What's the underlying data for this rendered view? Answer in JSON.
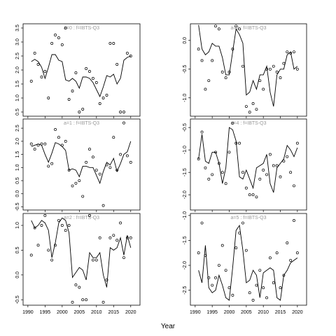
{
  "xlabel": "Year",
  "chart_data": [
    {
      "type": "line",
      "title": "a=0 : f=IBTS-Q3",
      "x": [
        1991,
        1992,
        1993,
        1994,
        1995,
        1996,
        1997,
        1998,
        1999,
        2000,
        2001,
        2002,
        2003,
        2004,
        2005,
        2006,
        2007,
        2008,
        2009,
        2010,
        2011,
        2012,
        2013,
        2014,
        2015,
        2016,
        2017,
        2018,
        2019,
        2020
      ],
      "series": [
        {
          "color": "#000000",
          "values": [
            2.3,
            2.38,
            2.3,
            2.1,
            1.7,
            2.1,
            2.55,
            2.55,
            2.35,
            2.3,
            1.65,
            1.6,
            1.7,
            1.6,
            1.35,
            1.75,
            1.75,
            1.7,
            1.55,
            1.3,
            1.05,
            1.4,
            1.8,
            1.75,
            1.85,
            1.5,
            1.7,
            2.35,
            2.45,
            2.5
          ]
        },
        {
          "color": "#000000",
          "marker": "circle",
          "values": [
            1.6,
            2.6,
            2.2,
            1.75,
            1.95,
            1.0,
            2.95,
            3.25,
            3.15,
            2.9,
            3.5,
            0.95,
            1.25,
            1.9,
            0.5,
            0.6,
            2.05,
            1.95,
            1.7,
            1.55,
            0.8,
            1.0,
            1.1,
            2.95,
            2.95,
            2.2,
            0.5,
            0.5,
            2.6,
            2.5
          ]
        }
      ],
      "xlim": [
        1988.6,
        2022.7
      ],
      "ylim": [
        0.35,
        3.65
      ],
      "yticks": [
        0.5,
        {
          "value": 1,
          "label": "1.0"
        },
        1.5,
        {
          "value": 2,
          "label": "2.0"
        },
        2.5,
        {
          "value": 3,
          "label": "3.0"
        },
        3.5
      ]
    },
    {
      "type": "line",
      "title": "a=1 : f=IBTS-Q3",
      "x": [
        1991,
        1992,
        1993,
        1994,
        1995,
        1996,
        1997,
        1998,
        1999,
        2000,
        2001,
        2002,
        2003,
        2004,
        2005,
        2006,
        2007,
        2008,
        2009,
        2010,
        2011,
        2012,
        2013,
        2014,
        2015,
        2016,
        2017,
        2018,
        2019,
        2020
      ],
      "series": [
        {
          "color": "#000000",
          "values": [
            1.8,
            1.85,
            1.9,
            1.85,
            1.5,
            1.2,
            1.55,
            1.95,
            1.9,
            1.8,
            1.65,
            0.9,
            0.95,
            0.9,
            0.65,
            1.05,
            1.05,
            1.0,
            1.0,
            0.7,
            0.4,
            0.85,
            1.2,
            1.1,
            1.35,
            0.85,
            1.15,
            1.5,
            1.6,
            2.0
          ]
        },
        {
          "color": "#000000",
          "marker": "circle",
          "values": [
            1.9,
            1.7,
            1.85,
            1.9,
            1.9,
            1.05,
            1.15,
            2.45,
            2.15,
            1.85,
            2.0,
            0.9,
            0.3,
            0.4,
            0.5,
            -0.1,
            1.2,
            1.7,
            1.4,
            0.9,
            0.75,
            -0.45,
            1.1,
            1.0,
            2.15,
            0.9,
            1.5,
            2.7,
            1.45,
            1.2
          ]
        }
      ],
      "xlim": [
        1988.6,
        2022.7
      ],
      "ylim": [
        -0.62,
        2.85
      ],
      "yticks": [
        -0.5,
        {
          "value": 0,
          "label": "0.0"
        },
        0.5,
        {
          "value": 1,
          "label": "1.0"
        },
        1.5,
        {
          "value": 2,
          "label": "2.0"
        },
        2.5
      ]
    },
    {
      "type": "line",
      "title": "a=2 : f=IBTS-Q3",
      "x": [
        1991,
        1992,
        1993,
        1994,
        1995,
        1996,
        1997,
        1998,
        1999,
        2000,
        2001,
        2002,
        2003,
        2004,
        2005,
        2006,
        2007,
        2008,
        2009,
        2010,
        2011,
        2012,
        2013,
        2014,
        2015,
        2016,
        2017,
        2018,
        2019,
        2020
      ],
      "series": [
        {
          "color": "#000000",
          "values": [
            1.1,
            0.95,
            1.0,
            1.1,
            1.05,
            0.9,
            0.35,
            0.65,
            1.05,
            1.15,
            1.1,
            0.85,
            -0.05,
            0.05,
            0.15,
            0.1,
            -0.1,
            0.45,
            0.35,
            0.35,
            0.45,
            0.0,
            -0.25,
            0.55,
            0.5,
            0.55,
            0.75,
            0.4,
            0.8,
            0.55
          ]
        },
        {
          "color": "#000000",
          "marker": "circle",
          "values": [
            0.4,
            0.95,
            0.6,
            1.0,
            1.2,
            0.5,
            0.3,
            0.6,
            1.1,
            1.0,
            0.9,
            1.0,
            -0.55,
            -0.2,
            -0.25,
            -0.5,
            -0.5,
            1.2,
            0.3,
            0.3,
            0.75,
            -0.55,
            -0.1,
            0.75,
            0.8,
            0.7,
            1.05,
            0.35,
            0.75,
            0.75
          ]
        }
      ],
      "xlim": [
        1988.6,
        2022.7
      ],
      "ylim": [
        -0.61,
        1.24
      ],
      "yticks": [
        -0.5,
        {
          "value": 0,
          "label": "0.0"
        },
        0.5,
        {
          "value": 1,
          "label": "1.0"
        }
      ],
      "xticks": [
        1990,
        1995,
        2000,
        2005,
        2010,
        2015,
        2020
      ]
    },
    {
      "type": "line",
      "title": "a=3 : f=IBTS-Q3",
      "x": [
        1991,
        1992,
        1993,
        1994,
        1995,
        1996,
        1997,
        1998,
        1999,
        2000,
        2001,
        2002,
        2003,
        2004,
        2005,
        2006,
        2007,
        2008,
        2009,
        2010,
        2011,
        2012,
        2013,
        2014,
        2015,
        2016,
        2017,
        2018,
        2019,
        2020
      ],
      "series": [
        {
          "color": "#000000",
          "values": [
            0.27,
            -0.15,
            -0.25,
            -0.2,
            -0.05,
            -0.1,
            -0.1,
            -0.3,
            -0.6,
            -0.6,
            -0.2,
            0.2,
            0.1,
            -0.05,
            -0.95,
            -0.9,
            -0.7,
            -0.85,
            -0.6,
            -0.6,
            -0.45,
            -0.9,
            -1.15,
            -0.6,
            -0.5,
            -0.5,
            -0.25,
            -0.2,
            -0.5,
            -0.45
          ]
        },
        {
          "color": "#000000",
          "marker": "circle",
          "values": [
            -0.15,
            -0.35,
            -0.85,
            -0.7,
            -0.35,
            0.25,
            0.2,
            -0.55,
            -0.65,
            -0.55,
            -0.15,
            0.25,
            0.2,
            -0.45,
            -1.15,
            -1.25,
            -1.1,
            -1.2,
            -0.7,
            -0.85,
            -0.5,
            -0.5,
            -0.45,
            -0.55,
            -0.65,
            -0.4,
            -0.2,
            -0.22,
            -0.2,
            -0.5
          ]
        }
      ],
      "xlim": [
        1988.6,
        2022.7
      ],
      "ylim": [
        -1.32,
        0.29
      ],
      "yticks": [
        {
          "value": -1,
          "label": "-1.0"
        },
        -0.5,
        {
          "value": 0,
          "label": "0.0"
        }
      ]
    },
    {
      "type": "line",
      "title": "a=4 : f=IBTS-Q3",
      "x": [
        1991,
        1992,
        1993,
        1994,
        1995,
        1996,
        1997,
        1998,
        1999,
        2000,
        2001,
        2002,
        2003,
        2004,
        2005,
        2006,
        2007,
        2008,
        2009,
        2010,
        2011,
        2012,
        2013,
        2014,
        2015,
        2016,
        2017,
        2018,
        2019,
        2020
      ],
      "series": [
        {
          "color": "#000000",
          "values": [
            -1.2,
            -0.65,
            -1.25,
            -1.3,
            -1.05,
            -1.05,
            -1.3,
            -1.75,
            -1.4,
            -0.5,
            -0.55,
            -0.8,
            -1.6,
            -1.65,
            -1.45,
            -1.65,
            -1.85,
            -1.4,
            -1.35,
            -1.3,
            -1.1,
            -1.75,
            -1.95,
            -1.4,
            -1.3,
            -1.2,
            -0.9,
            -1.0,
            -1.15,
            -0.95
          ]
        },
        {
          "color": "#000000",
          "marker": "circle",
          "values": [
            -1.2,
            -0.6,
            -1.4,
            -1.65,
            -1.55,
            -1.05,
            -1.3,
            -1.5,
            -1.75,
            -1.05,
            -0.4,
            -0.85,
            -0.85,
            -1.5,
            -1.85,
            -2.0,
            -2.0,
            -2.05,
            -1.65,
            -1.45,
            -1.55,
            -1.1,
            -1.35,
            -1.35,
            -1.6,
            -1.25,
            -1.15,
            -1.5,
            -1.8,
            -0.85
          ]
        }
      ],
      "xlim": [
        1988.6,
        2022.7
      ],
      "ylim": [
        -2.34,
        -0.31
      ],
      "yticks": [
        {
          "value": -2,
          "label": "-2.0"
        },
        -1.5,
        {
          "value": -1,
          "label": "-1.0"
        },
        -0.5
      ]
    },
    {
      "type": "line",
      "title": "a=5 : f=IBTS-Q3",
      "x": [
        1991,
        1992,
        1993,
        1994,
        1995,
        1996,
        1997,
        1998,
        1999,
        2000,
        2001,
        2002,
        2003,
        2004,
        2005,
        2006,
        2007,
        2008,
        2009,
        2010,
        2011,
        2012,
        2013,
        2014,
        2015,
        2016,
        2017,
        2018,
        2019,
        2020
      ],
      "series": [
        {
          "color": "#000000",
          "values": [
            -2.1,
            -2.35,
            -1.6,
            -2.45,
            -2.55,
            -2.5,
            -2.2,
            -2.4,
            -2.65,
            -2.7,
            -2.05,
            -1.3,
            -1.2,
            -1.7,
            -2.35,
            -2.3,
            -2.1,
            -2.2,
            -2.65,
            -2.15,
            -2.1,
            -2.05,
            -2.1,
            -2.65,
            -2.7,
            -2.2,
            -2.1,
            -1.95,
            -1.9,
            -1.85
          ]
        },
        {
          "color": "#000000",
          "marker": "circle",
          "values": [
            -1.75,
            -1.15,
            -1.8,
            -2.25,
            -2.4,
            -2.25,
            -2.0,
            -1.6,
            -2.1,
            -2.45,
            -2.6,
            -1.65,
            -1.35,
            -1.15,
            -1.7,
            -2.55,
            -2.7,
            -2.4,
            -2.1,
            -2.45,
            -2.65,
            -1.85,
            -2.35,
            -1.75,
            -2.45,
            -2.2,
            -1.55,
            -1.9,
            -1.1,
            -1.75
          ]
        }
      ],
      "xlim": [
        1988.6,
        2022.7
      ],
      "ylim": [
        -2.8,
        -0.96
      ],
      "yticks": [
        {
          "value": -2.5,
          "label": "-2.5"
        },
        {
          "value": -2,
          "label": "-2.0"
        },
        -1.5,
        {
          "value": -1,
          "label": "-1.0"
        }
      ],
      "xticks": [
        1990,
        1995,
        2000,
        2005,
        2010,
        2015,
        2020
      ]
    }
  ]
}
